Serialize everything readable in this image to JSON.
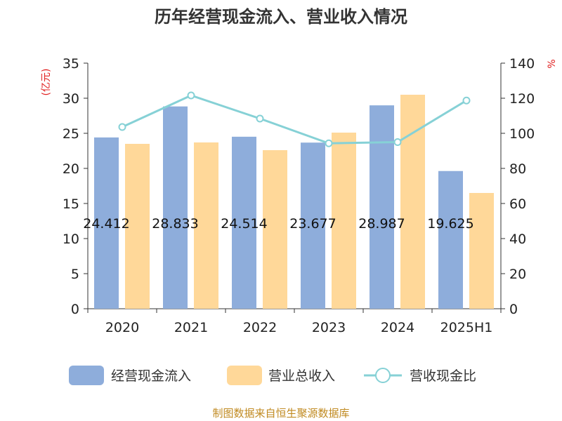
{
  "chart_data": {
    "type": "bar",
    "title": "历年经营现金流入、营业收入情况",
    "categories": [
      "2020",
      "2021",
      "2022",
      "2023",
      "2024",
      "2025H1"
    ],
    "y_left": {
      "unit": "(亿元)",
      "ylim": [
        0,
        35
      ],
      "ticks": [
        0,
        5,
        10,
        15,
        20,
        25,
        30,
        35
      ]
    },
    "y_right": {
      "unit": "%",
      "ylim": [
        0,
        140
      ],
      "ticks": [
        0,
        20,
        40,
        60,
        80,
        100,
        120,
        140
      ]
    },
    "series": [
      {
        "name": "经营现金流入",
        "type": "bar",
        "axis": "left",
        "color": "#8EADDB",
        "values": [
          24.412,
          28.833,
          24.514,
          23.677,
          28.987,
          19.625
        ],
        "labels": [
          "24.412",
          "28.833",
          "24.514",
          "23.677",
          "28.987",
          "19.625"
        ]
      },
      {
        "name": "营业总收入",
        "type": "bar",
        "axis": "left",
        "color": "#FFD899",
        "values": [
          23.5,
          23.7,
          22.6,
          25.1,
          30.5,
          16.5
        ]
      },
      {
        "name": "营收现金比",
        "type": "line",
        "axis": "right",
        "color": "#86D1D6",
        "values": [
          103.6,
          121.6,
          108.4,
          94.3,
          95.0,
          118.7
        ]
      }
    ],
    "legend_position": "bottom",
    "grid": false,
    "source": "制图数据来自恒生聚源数据库"
  }
}
